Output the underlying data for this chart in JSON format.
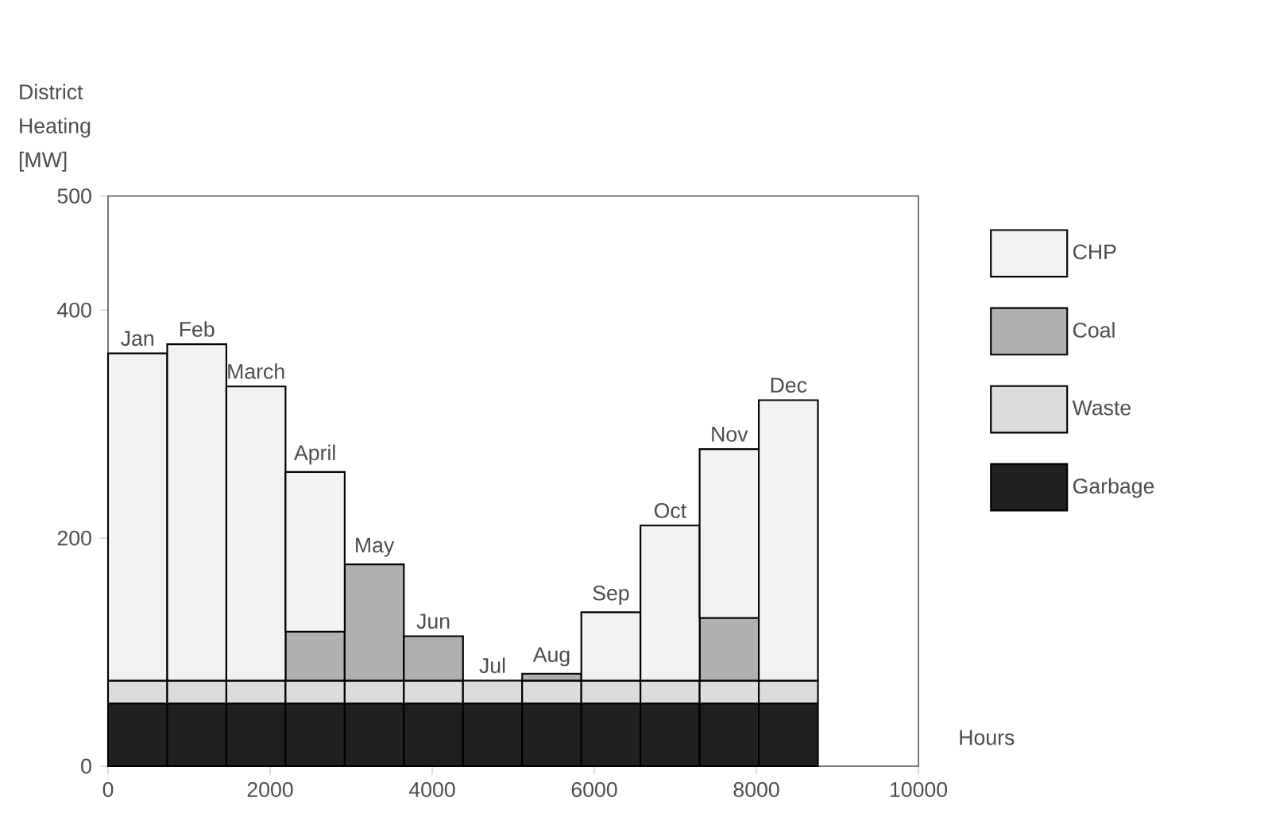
{
  "chart_data": {
    "type": "bar",
    "stacked": true,
    "ylabel": "District Heating [MW]",
    "xlabel": "Hours",
    "x": [
      365,
      1095,
      1825,
      2555,
      3285,
      4015,
      4745,
      5475,
      6205,
      6935,
      7665,
      8395
    ],
    "series": [
      {
        "name": "Garbage",
        "color": "#202020",
        "values": [
          55,
          55,
          55,
          55,
          55,
          55,
          55,
          55,
          55,
          55,
          55,
          55
        ]
      },
      {
        "name": "Waste",
        "color": "#dcdcdc",
        "values": [
          20,
          20,
          20,
          20,
          20,
          20,
          20,
          20,
          20,
          20,
          20,
          20
        ]
      },
      {
        "name": "Coal",
        "color": "#b0b0b0",
        "values": [
          null,
          null,
          null,
          43,
          102,
          39,
          null,
          6,
          null,
          null,
          55,
          null
        ]
      },
      {
        "name": "CHP",
        "color": "#f2f2f2",
        "values": [
          287,
          295,
          258,
          140,
          null,
          null,
          null,
          null,
          60,
          136,
          148,
          246
        ]
      }
    ],
    "xlim": [
      0,
      10000
    ],
    "ylim": [
      0,
      500
    ],
    "xticks": [
      0,
      2000,
      4000,
      6000,
      8000,
      10000
    ],
    "yticks": [
      0,
      200,
      400,
      500
    ],
    "grid": false,
    "legend": "right",
    "annotations": [
      "Jan",
      "Feb",
      "March",
      "April",
      "May",
      "Jun",
      "Jul",
      "Aug",
      "Sep",
      "Oct",
      "Nov",
      "Dec"
    ]
  }
}
